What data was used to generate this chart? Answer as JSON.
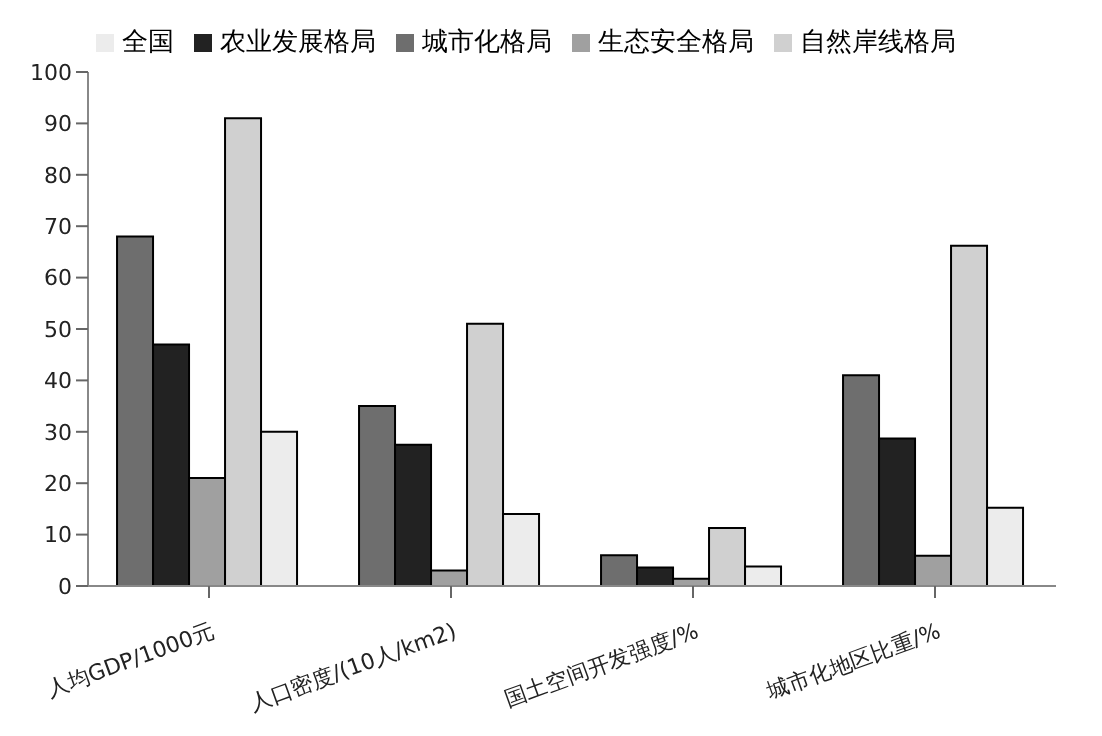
{
  "chart_data": {
    "type": "bar",
    "categories": [
      "人均GDP/1000元",
      "人口密度/(10人/km2)",
      "国土空间开发强度/%",
      "城市化地区比重/%"
    ],
    "series": [
      {
        "name": "城市化格局",
        "color": "#6e6e6e",
        "values": [
          68,
          35,
          6,
          41
        ]
      },
      {
        "name": "农业发展格局",
        "color": "#222222",
        "values": [
          47,
          27.5,
          3.6,
          28.7
        ]
      },
      {
        "name": "生态安全格局",
        "color": "#a0a0a0",
        "values": [
          21,
          3,
          1.4,
          5.9
        ]
      },
      {
        "name": "自然岸线格局",
        "color": "#d0d0d0",
        "values": [
          91,
          51,
          11.3,
          66.2
        ]
      },
      {
        "name": "全国",
        "color": "#ececec",
        "values": [
          30,
          14,
          3.8,
          15.2
        ]
      }
    ],
    "ylim": [
      0,
      100
    ],
    "yticks": [
      0,
      10,
      20,
      30,
      40,
      50,
      60,
      70,
      80,
      90,
      100
    ],
    "grid": false,
    "legend": "top"
  }
}
